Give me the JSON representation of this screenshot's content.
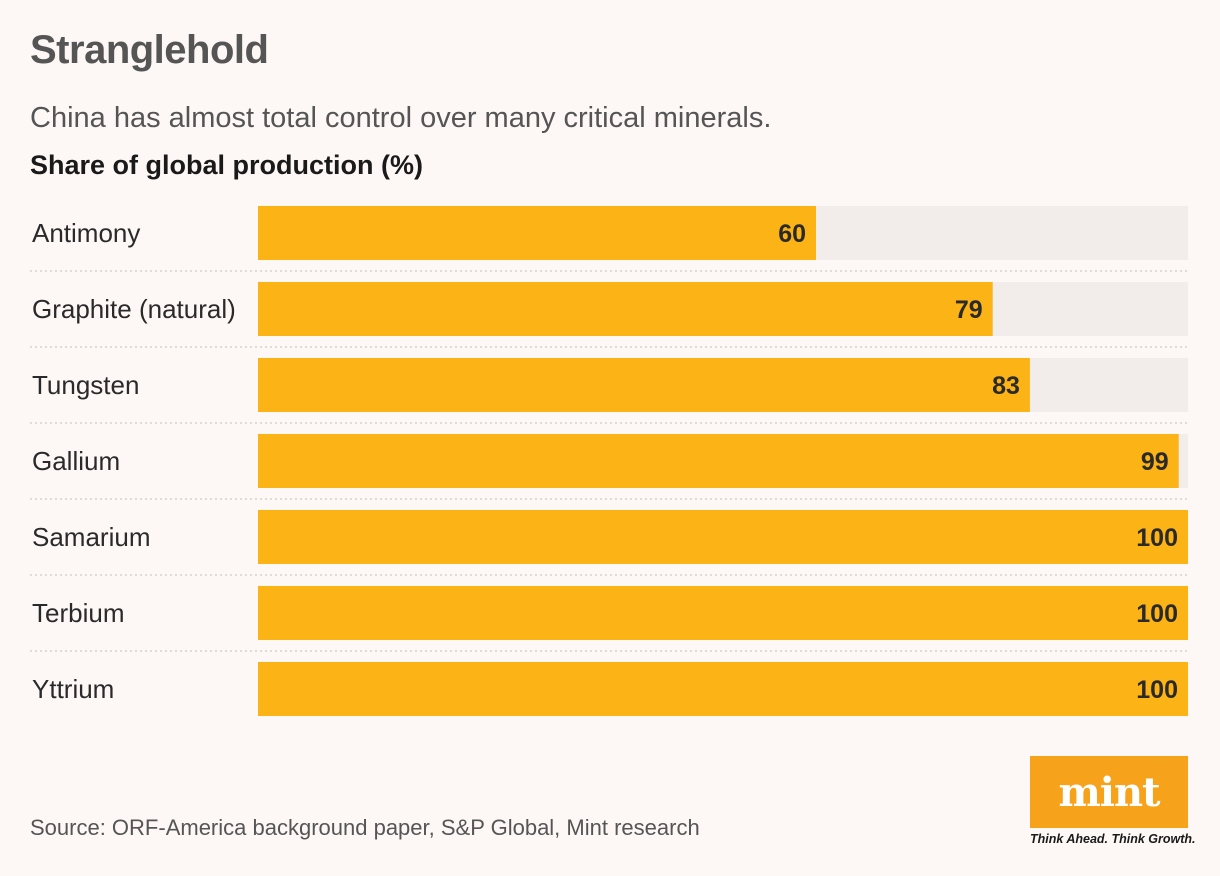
{
  "header": {
    "title": "Stranglehold",
    "subtitle": "China has almost total control over many critical minerals.",
    "axis_label": "Share of global production (%)"
  },
  "footer": {
    "source": "Source: ORF-America background paper, S&P Global, Mint research"
  },
  "brand": {
    "logo_text": "mint",
    "tagline": "Think Ahead. Think Growth."
  },
  "colors": {
    "bar": "#fbb316",
    "track": "#f2ecea",
    "background": "#fdf8f6",
    "logo": "#f7a21b"
  },
  "chart_data": {
    "type": "bar",
    "orientation": "horizontal",
    "title": "Stranglehold",
    "subtitle": "China has almost total control over many critical minerals.",
    "xlabel": "Share of global production (%)",
    "categories": [
      "Antimony",
      "Graphite (natural)",
      "Tungsten",
      "Gallium",
      "Samarium",
      "Terbium",
      "Yttrium"
    ],
    "values": [
      60,
      79,
      83,
      99,
      100,
      100,
      100
    ],
    "xlim": [
      0,
      100
    ],
    "data_labels": true,
    "grid": false,
    "legend": "none"
  }
}
